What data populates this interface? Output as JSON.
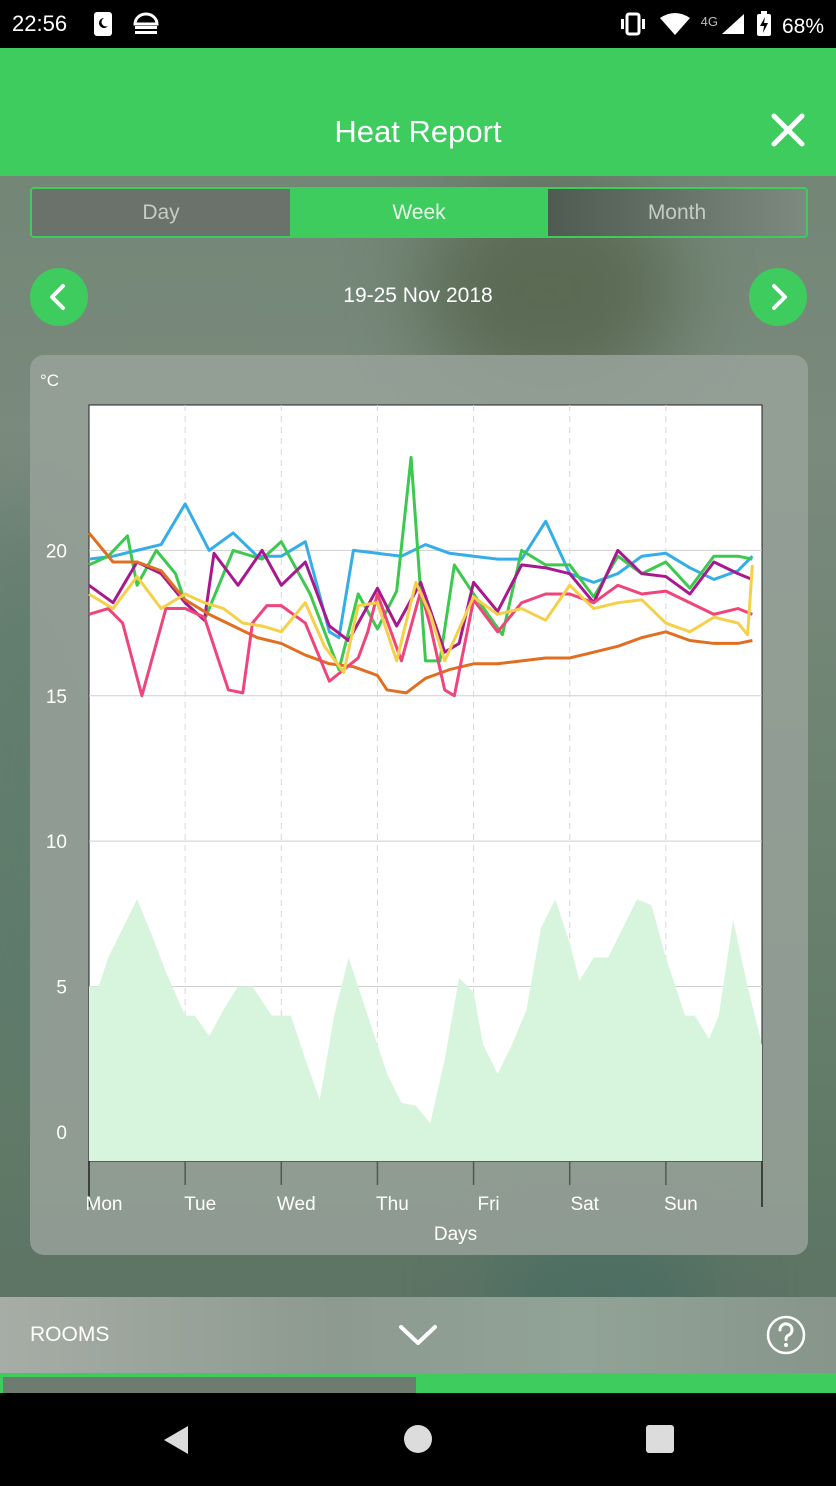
{
  "status_bar": {
    "time": "22:56",
    "network": "4G",
    "battery": "68%"
  },
  "header": {
    "title": "Heat Report",
    "close_icon": "close-icon"
  },
  "tabs": [
    {
      "label": "Day",
      "active": false
    },
    {
      "label": "Week",
      "active": true
    },
    {
      "label": "Month",
      "active": false
    }
  ],
  "date_nav": {
    "label": "19-25 Nov 2018",
    "prev_icon": "chevron-left-icon",
    "next_icon": "chevron-right-icon"
  },
  "bottom_bar": {
    "label": "ROOMS",
    "expand_icon": "chevron-down-icon",
    "help_icon": "help-icon"
  },
  "progress": {
    "fraction": 0.5
  },
  "colors": {
    "accent": "#3ecc5f",
    "orange": "#e06f21",
    "blue": "#35aee8",
    "green": "#3cc94d",
    "purple": "#a8198f",
    "pink": "#f0457a",
    "yellow": "#f5d04a",
    "outdoor": "#d6f5dc"
  },
  "chart_data": {
    "type": "line",
    "ylabel": "°C",
    "xlabel": "Days",
    "categories": [
      "Mon",
      "Tue",
      "Wed",
      "Thu",
      "Fri",
      "Sat",
      "Sun"
    ],
    "xlim": [
      0,
      7
    ],
    "ylim": [
      -1,
      25
    ],
    "yticks": [
      0,
      5,
      10,
      15,
      20
    ],
    "grid": true,
    "series": [
      {
        "color": "#35aee8",
        "x": [
          0,
          0.25,
          0.5,
          0.75,
          1,
          1.25,
          1.5,
          1.75,
          2,
          2.25,
          2.5,
          2.6,
          2.75,
          3,
          3.25,
          3.5,
          3.75,
          4,
          4.25,
          4.5,
          4.75,
          5,
          5.25,
          5.5,
          5.75,
          6,
          6.25,
          6.5,
          6.75,
          6.9
        ],
        "y": [
          19.7,
          19.8,
          20,
          20.2,
          21.6,
          20,
          20.6,
          19.8,
          19.8,
          20.3,
          17.2,
          17,
          20,
          19.9,
          19.8,
          20.2,
          19.9,
          19.8,
          19.7,
          19.7,
          21,
          19.2,
          18.9,
          19.2,
          19.8,
          19.9,
          19.4,
          19,
          19.3,
          19.8
        ]
      },
      {
        "color": "#3cc94d",
        "x": [
          0,
          0.2,
          0.4,
          0.5,
          0.7,
          0.9,
          1,
          1.2,
          1.5,
          1.8,
          2,
          2.3,
          2.6,
          2.8,
          3,
          3.2,
          3.35,
          3.5,
          3.65,
          3.8,
          4,
          4.3,
          4.5,
          4.75,
          5,
          5.25,
          5.5,
          5.75,
          6,
          6.25,
          6.5,
          6.75,
          6.9
        ],
        "y": [
          19.5,
          19.8,
          20.5,
          18.8,
          20,
          19.2,
          18.2,
          17.6,
          20,
          19.7,
          20.3,
          18.5,
          15.9,
          18.5,
          17.3,
          18.6,
          23.2,
          16.2,
          16.2,
          19.5,
          18.5,
          17.1,
          20,
          19.5,
          19.5,
          18.4,
          19.8,
          19.2,
          19.6,
          18.7,
          19.8,
          19.8,
          19.7
        ]
      },
      {
        "color": "#a8198f",
        "x": [
          0,
          0.25,
          0.5,
          0.75,
          1,
          1.2,
          1.3,
          1.55,
          1.8,
          2,
          2.25,
          2.5,
          2.7,
          3,
          3.2,
          3.45,
          3.7,
          3.85,
          4,
          4.25,
          4.5,
          4.75,
          5,
          5.25,
          5.5,
          5.75,
          6,
          6.25,
          6.5,
          6.75,
          6.9
        ],
        "y": [
          18.8,
          18.2,
          19.6,
          19.2,
          18.2,
          17.6,
          19.9,
          18.8,
          20,
          18.8,
          19.6,
          17.4,
          16.9,
          18.7,
          17.4,
          18.9,
          16.5,
          16.8,
          18.9,
          17.9,
          19.5,
          19.4,
          19.2,
          18.2,
          20,
          19.2,
          19.1,
          18.5,
          19.6,
          19.2,
          19
        ]
      },
      {
        "color": "#e06f21",
        "x": [
          0,
          0.25,
          0.5,
          0.75,
          1,
          1.25,
          1.5,
          1.75,
          2,
          2.25,
          2.5,
          2.75,
          3,
          3.1,
          3.3,
          3.5,
          3.75,
          4,
          4.25,
          4.5,
          4.75,
          5,
          5.25,
          5.5,
          5.75,
          6,
          6.25,
          6.5,
          6.75,
          6.9
        ],
        "y": [
          20.6,
          19.6,
          19.6,
          19.3,
          18.3,
          17.8,
          17.4,
          17,
          16.8,
          16.4,
          16.1,
          16,
          15.7,
          15.2,
          15.1,
          15.6,
          15.9,
          16.1,
          16.1,
          16.2,
          16.3,
          16.3,
          16.5,
          16.7,
          17,
          17.2,
          16.9,
          16.8,
          16.8,
          16.9
        ]
      },
      {
        "color": "#f0457a",
        "x": [
          0,
          0.2,
          0.35,
          0.55,
          0.7,
          0.8,
          1,
          1.2,
          1.45,
          1.6,
          1.7,
          1.85,
          2,
          2.25,
          2.5,
          2.8,
          2.9,
          3,
          3.25,
          3.45,
          3.55,
          3.7,
          3.8,
          4,
          4.25,
          4.5,
          4.75,
          5,
          5.25,
          5.5,
          5.75,
          6,
          6.25,
          6.5,
          6.75,
          6.9
        ],
        "y": [
          17.8,
          18,
          17.5,
          15,
          16.8,
          18,
          18,
          17.7,
          15.2,
          15.1,
          17.5,
          18.1,
          18.1,
          17.5,
          15.5,
          16.3,
          17.2,
          18.5,
          16.2,
          18.6,
          17.4,
          15.2,
          15,
          18.3,
          17.2,
          18.2,
          18.5,
          18.5,
          18.2,
          18.8,
          18.5,
          18.6,
          18.2,
          17.8,
          18,
          17.8
        ]
      },
      {
        "color": "#f5d04a",
        "x": [
          0,
          0.25,
          0.5,
          0.75,
          1,
          1.2,
          1.4,
          1.6,
          1.8,
          2,
          2.25,
          2.45,
          2.65,
          2.8,
          3,
          3.2,
          3.4,
          3.55,
          3.7,
          4,
          4.25,
          4.5,
          4.75,
          5,
          5.25,
          5.5,
          5.75,
          6,
          6.25,
          6.5,
          6.75,
          6.85,
          6.9
        ],
        "y": [
          18.5,
          18,
          19.1,
          18,
          18.5,
          18.2,
          18,
          17.5,
          17.4,
          17.2,
          18.2,
          16.7,
          15.8,
          18.1,
          18.2,
          16.2,
          18.9,
          17.8,
          16.2,
          18.4,
          17.8,
          18,
          17.6,
          18.8,
          18,
          18.2,
          18.3,
          17.5,
          17.2,
          17.7,
          17.5,
          17.1,
          19.5
        ]
      }
    ],
    "outdoor": {
      "color": "#d6f5dc",
      "x": [
        0,
        0.1,
        0.2,
        0.35,
        0.5,
        0.65,
        0.8,
        1,
        1.1,
        1.25,
        1.4,
        1.55,
        1.7,
        1.9,
        2.1,
        2.25,
        2.4,
        2.55,
        2.7,
        2.9,
        3.1,
        3.25,
        3.4,
        3.55,
        3.7,
        3.85,
        4,
        4.1,
        4.25,
        4.4,
        4.55,
        4.7,
        4.85,
        5,
        5.1,
        5.25,
        5.4,
        5.55,
        5.7,
        5.85,
        6,
        6.1,
        6.2,
        6.3,
        6.45,
        6.55,
        6.7,
        6.85,
        7
      ],
      "y": [
        5,
        5,
        6,
        7,
        8,
        6.8,
        5.5,
        4,
        4,
        3.3,
        4.2,
        5,
        5,
        4,
        4,
        2.5,
        1.1,
        4,
        6,
        4,
        2,
        1,
        0.9,
        0.3,
        2.5,
        5.3,
        4.8,
        3,
        2,
        3,
        4.2,
        7,
        8,
        6.5,
        5.2,
        6,
        6,
        7,
        8,
        7.8,
        6,
        5,
        4,
        4,
        3.2,
        4,
        7.3,
        5,
        3
      ]
    }
  }
}
